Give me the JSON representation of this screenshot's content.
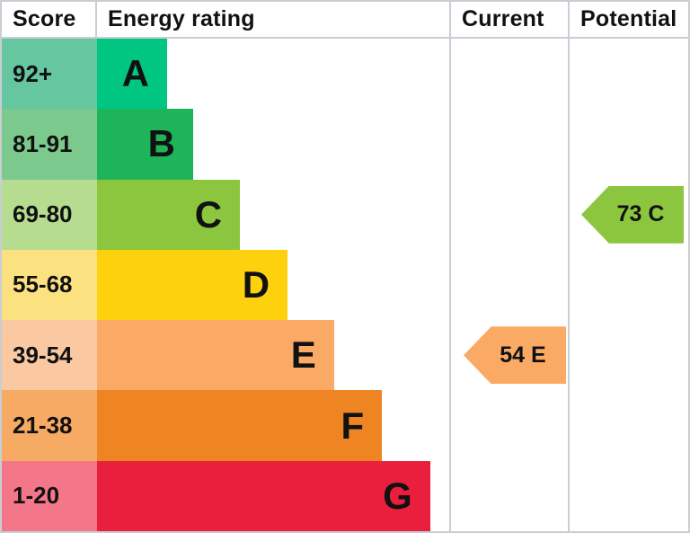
{
  "header": {
    "score": "Score",
    "rating": "Energy rating",
    "current": "Current",
    "potential": "Potential"
  },
  "bands": [
    {
      "score": "92+",
      "letter": "A",
      "color": "#00c681",
      "tint": "#65c6a0",
      "width_pct": 19.9
    },
    {
      "score": "81-91",
      "letter": "B",
      "color": "#1db45a",
      "tint": "#7cc98d",
      "width_pct": 27.3
    },
    {
      "score": "69-80",
      "letter": "C",
      "color": "#8cc63f",
      "tint": "#b6dc8f",
      "width_pct": 40.6
    },
    {
      "score": "55-68",
      "letter": "D",
      "color": "#fdd10d",
      "tint": "#fce180",
      "width_pct": 54.1
    },
    {
      "score": "39-54",
      "letter": "E",
      "color": "#fbaa66",
      "tint": "#fbc9a1",
      "width_pct": 67.3
    },
    {
      "score": "21-38",
      "letter": "F",
      "color": "#ef8423",
      "tint": "#f6aa64",
      "width_pct": 80.9
    },
    {
      "score": "1-20",
      "letter": "G",
      "color": "#ea1e3d",
      "tint": "#f47789",
      "width_pct": 94.6
    }
  ],
  "current": {
    "label": "54 E",
    "value": 54,
    "band_letter": "E",
    "color": "#fbaa66"
  },
  "potential": {
    "label": "73 C",
    "value": 73,
    "band_letter": "C",
    "color": "#8cc63f"
  },
  "colors": {
    "border": "#c8ced4",
    "text": "#111111",
    "background": "#ffffff"
  },
  "chart_data": {
    "type": "bar",
    "title": "Energy rating",
    "columns": [
      "Score",
      "Energy rating",
      "Current",
      "Potential"
    ],
    "categories": [
      "A",
      "B",
      "C",
      "D",
      "E",
      "F",
      "G"
    ],
    "score_ranges": [
      "92+",
      "81-91",
      "69-80",
      "55-68",
      "39-54",
      "21-38",
      "1-20"
    ],
    "band_colors": [
      "#00c681",
      "#1db45a",
      "#8cc63f",
      "#fdd10d",
      "#fbaa66",
      "#ef8423",
      "#ea1e3d"
    ],
    "series": [
      {
        "name": "Current",
        "value": 54,
        "band": "E"
      },
      {
        "name": "Potential",
        "value": 73,
        "band": "C"
      }
    ],
    "grid": false,
    "legend_position": "none"
  }
}
